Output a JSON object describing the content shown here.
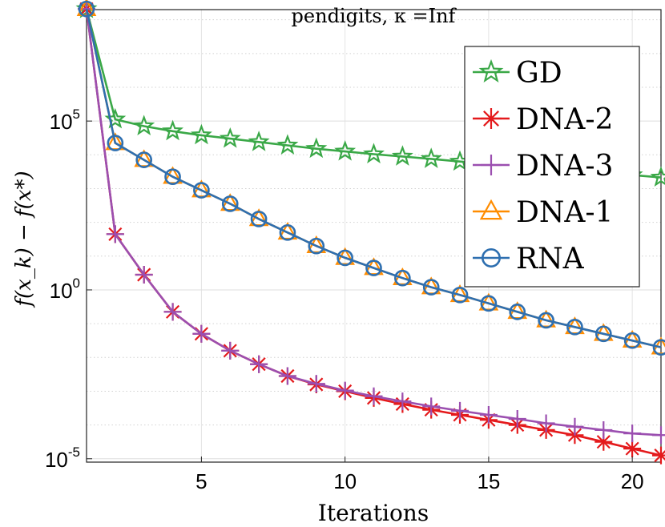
{
  "chart_data": {
    "type": "line",
    "title": "pendigits, κ =Inf",
    "xlabel": "Iterations",
    "ylabel": "f(x_k) − f(x*)",
    "yscale": "log",
    "xlim": [
      1,
      21
    ],
    "ylim_log10": [
      -5.1,
      8.3
    ],
    "x_ticks": [
      5,
      10,
      15,
      20
    ],
    "y_ticks": [
      {
        "exp": 5,
        "base": "10",
        "sup": "5"
      },
      {
        "exp": 0,
        "base": "10",
        "sup": "0"
      },
      {
        "exp": -5,
        "base": "10",
        "sup": "-5"
      }
    ],
    "grid": true,
    "legend_position": "top-right",
    "x": [
      1,
      2,
      3,
      4,
      5,
      6,
      7,
      8,
      9,
      10,
      11,
      12,
      13,
      14,
      15,
      16,
      17,
      18,
      19,
      20,
      21
    ],
    "series": [
      {
        "name": "GD",
        "color": "#3aa847",
        "marker": "star",
        "log10_values": [
          8.32,
          5.05,
          4.85,
          4.7,
          4.58,
          4.48,
          4.38,
          4.28,
          4.18,
          4.1,
          4.02,
          3.95,
          3.88,
          3.8,
          3.73,
          3.66,
          3.6,
          3.53,
          3.46,
          3.4,
          3.33
        ]
      },
      {
        "name": "DNA-2",
        "color": "#e41a1c",
        "marker": "asterisk",
        "log10_values": [
          8.32,
          1.65,
          0.45,
          -0.65,
          -1.3,
          -1.8,
          -2.2,
          -2.55,
          -2.8,
          -3.0,
          -3.2,
          -3.38,
          -3.55,
          -3.7,
          -3.85,
          -4.0,
          -4.15,
          -4.3,
          -4.5,
          -4.7,
          -4.9
        ]
      },
      {
        "name": "DNA-3",
        "color": "#9b4fb0",
        "marker": "plus",
        "log10_values": [
          8.32,
          1.65,
          0.45,
          -0.65,
          -1.3,
          -1.8,
          -2.2,
          -2.55,
          -2.78,
          -2.98,
          -3.15,
          -3.3,
          -3.45,
          -3.58,
          -3.7,
          -3.82,
          -3.95,
          -4.05,
          -4.15,
          -4.25,
          -4.3
        ]
      },
      {
        "name": "DNA-1",
        "color": "#ff8c00",
        "marker": "triangle",
        "log10_values": [
          8.32,
          4.35,
          3.85,
          3.35,
          2.95,
          2.55,
          2.1,
          1.7,
          1.3,
          0.95,
          0.65,
          0.35,
          0.08,
          -0.15,
          -0.4,
          -0.65,
          -0.9,
          -1.1,
          -1.3,
          -1.5,
          -1.7
        ]
      },
      {
        "name": "RNA",
        "color": "#2e6fb0",
        "marker": "circle",
        "log10_values": [
          8.32,
          4.35,
          3.85,
          3.35,
          2.95,
          2.55,
          2.1,
          1.7,
          1.3,
          0.95,
          0.65,
          0.35,
          0.08,
          -0.15,
          -0.4,
          -0.65,
          -0.9,
          -1.1,
          -1.3,
          -1.5,
          -1.7
        ]
      }
    ]
  }
}
